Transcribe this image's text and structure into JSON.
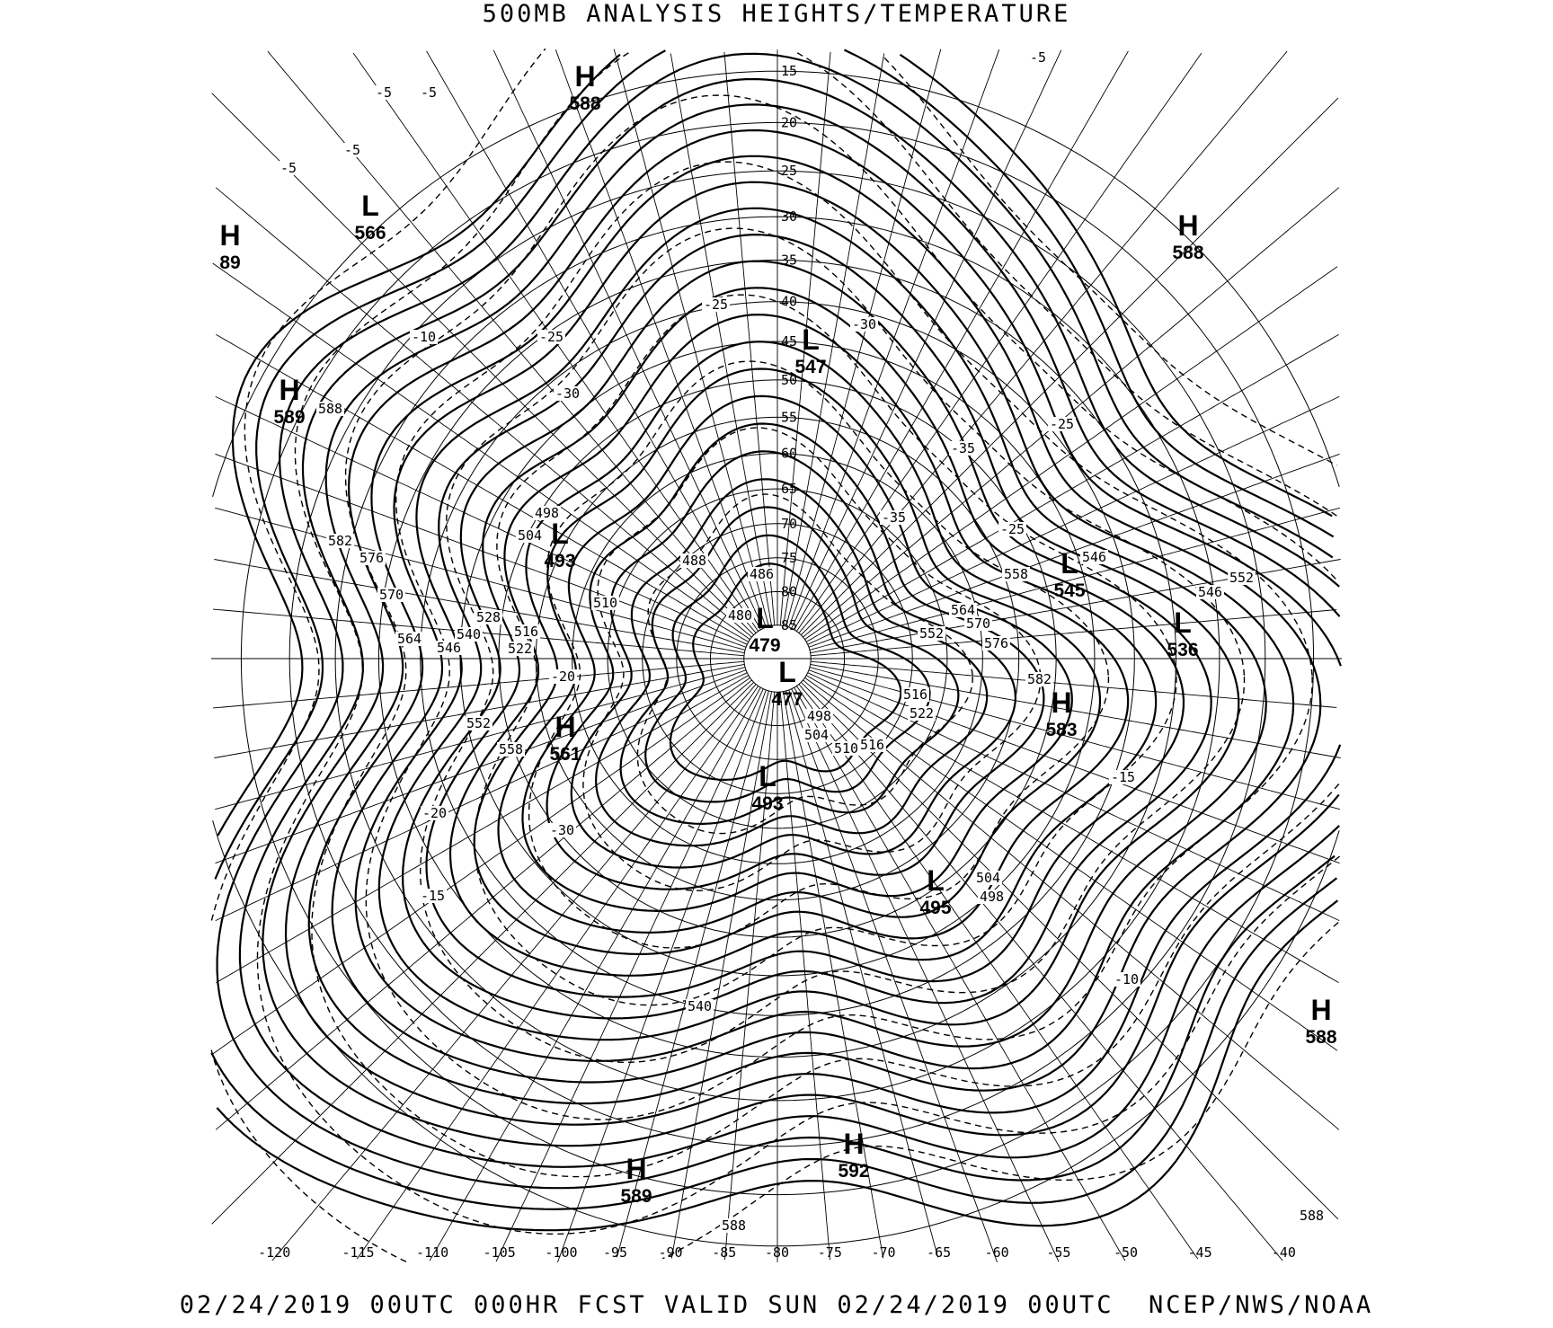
{
  "title": "500MB ANALYSIS  HEIGHTS/TEMPERATURE",
  "footer": "02/24/2019 00UTC 000HR FCST VALID SUN 02/24/2019 00UTC  NCEP/NWS/NOAA",
  "colors": {
    "ink": "#000000",
    "background": "#ffffff"
  },
  "projection": "north polar stereographic",
  "centers": [
    {
      "type": "H",
      "value": "588"
    },
    {
      "type": "L",
      "value": "566"
    },
    {
      "type": "H",
      "value": "89"
    },
    {
      "type": "H",
      "value": "589"
    },
    {
      "type": "H",
      "value": "588"
    },
    {
      "type": "L",
      "value": "547"
    },
    {
      "type": "L",
      "value": "493"
    },
    {
      "type": "L",
      "value": "479"
    },
    {
      "type": "L",
      "value": "477"
    },
    {
      "type": "L",
      "value": "545"
    },
    {
      "type": "L",
      "value": "536"
    },
    {
      "type": "H",
      "value": "583"
    },
    {
      "type": "H",
      "value": "561"
    },
    {
      "type": "L",
      "value": "493"
    },
    {
      "type": "L",
      "value": "495"
    },
    {
      "type": "H",
      "value": "588"
    },
    {
      "type": "H",
      "value": "592"
    },
    {
      "type": "H",
      "value": "589"
    }
  ],
  "latitude_labels": [
    "15",
    "20",
    "25",
    "30",
    "35",
    "40",
    "45",
    "50",
    "55",
    "60",
    "65",
    "70",
    "75",
    "80",
    "85"
  ],
  "longitude_labels": [
    "-120",
    "-115",
    "-110",
    "-105",
    "-100",
    "-95",
    "-90",
    "-85",
    "-80",
    "-75",
    "-70",
    "-65",
    "-60",
    "-55",
    "-50",
    "-45",
    "-40"
  ],
  "height_contour_labels": [
    "582",
    "576",
    "570",
    "564",
    "558",
    "552",
    "546",
    "540",
    "528",
    "522",
    "516",
    "510",
    "504",
    "498",
    "588",
    "540",
    "588",
    "588",
    "552",
    "546",
    "546",
    "558",
    "564",
    "570",
    "576",
    "582",
    "552",
    "516",
    "522",
    "516",
    "510",
    "504",
    "498",
    "504",
    "498",
    "488",
    "486",
    "480"
  ],
  "temperature_contour_labels": [
    "-5",
    "-5",
    "-5",
    "-5",
    "-10",
    "-25",
    "-25",
    "-30",
    "-30",
    "-35",
    "-35",
    "-25",
    "-25",
    "-20",
    "-30",
    "-20",
    "-15",
    "-15",
    "-10",
    "-5"
  ]
}
